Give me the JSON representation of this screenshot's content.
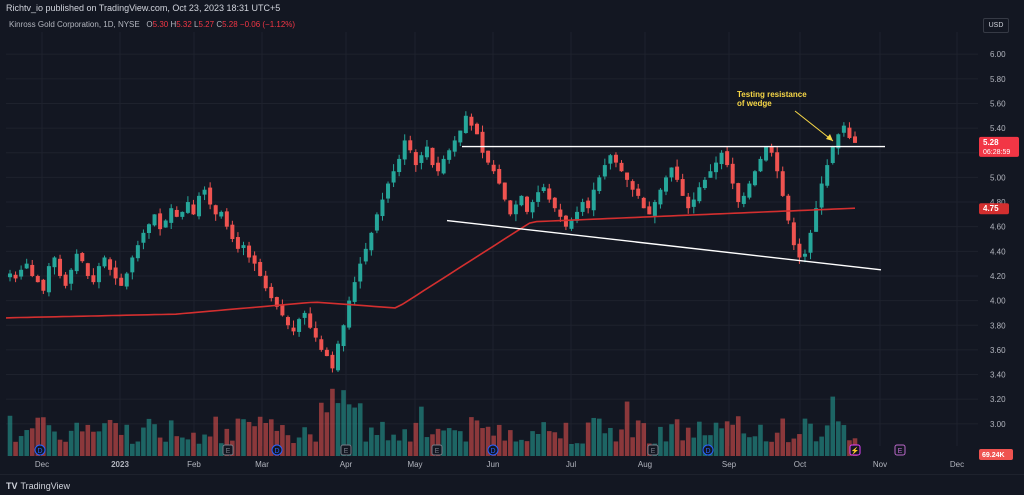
{
  "header": {
    "publisher_line": "Richtv_io published on TradingView.com, Oct 23, 2023 18:31 UTC+5"
  },
  "legend": {
    "symbol": "Kinross Gold Corporation, 1D, NYSE",
    "open_label": "O",
    "open": "5.30",
    "high_label": "H",
    "high": "5.32",
    "low_label": "L",
    "low": "5.27",
    "close_label": "C",
    "close": "5.28",
    "change": "−0.06 (−1.12%)"
  },
  "currency": "USD",
  "footer": {
    "brand": "TradingView"
  },
  "colors": {
    "up": "#26a69a",
    "down": "#ef5350",
    "ma": "#d32f2f",
    "bg": "#131722",
    "grid": "#1e222d"
  },
  "chart_data": {
    "type": "candlestick",
    "y_axis": {
      "ticks": [
        "6.00",
        "5.80",
        "5.60",
        "5.40",
        "5.20",
        "5.00",
        "4.80",
        "4.60",
        "4.40",
        "4.20",
        "4.00",
        "3.80",
        "3.60",
        "3.40",
        "3.20",
        "3.00"
      ],
      "ylim": [
        2.82,
        6.18
      ],
      "side": "right"
    },
    "x_axis": {
      "ticks": [
        "Dec",
        "2023",
        "Feb",
        "Mar",
        "Apr",
        "May",
        "Jun",
        "Jul",
        "Aug",
        "Sep",
        "Oct",
        "Nov",
        "Dec"
      ]
    },
    "price_label": {
      "value": "5.28",
      "countdown": "06:28:59"
    },
    "ma_label": {
      "value": "4.75"
    },
    "volume_label": {
      "value": "69.24K"
    },
    "series_closes": [
      4.22,
      4.18,
      4.25,
      4.3,
      4.2,
      4.15,
      4.08,
      4.28,
      4.35,
      4.2,
      4.12,
      4.25,
      4.38,
      4.32,
      4.2,
      4.15,
      4.28,
      4.35,
      4.25,
      4.18,
      4.12,
      4.22,
      4.35,
      4.45,
      4.55,
      4.62,
      4.7,
      4.58,
      4.65,
      4.75,
      4.68,
      4.72,
      4.8,
      4.7,
      4.85,
      4.9,
      4.78,
      4.7,
      4.72,
      4.6,
      4.5,
      4.42,
      4.45,
      4.35,
      4.3,
      4.2,
      4.1,
      4.02,
      3.95,
      3.88,
      3.8,
      3.75,
      3.85,
      3.9,
      3.78,
      3.7,
      3.6,
      3.55,
      3.45,
      3.65,
      3.8,
      4.0,
      4.15,
      4.3,
      4.42,
      4.55,
      4.7,
      4.82,
      4.95,
      5.05,
      5.15,
      5.3,
      5.22,
      5.1,
      5.18,
      5.25,
      5.1,
      5.05,
      5.15,
      5.22,
      5.3,
      5.38,
      5.5,
      5.42,
      5.35,
      5.2,
      5.12,
      5.05,
      4.95,
      4.82,
      4.7,
      4.78,
      4.85,
      4.72,
      4.8,
      4.88,
      4.92,
      4.82,
      4.75,
      4.68,
      4.6,
      4.65,
      4.72,
      4.8,
      4.75,
      4.9,
      5.0,
      5.1,
      5.18,
      5.12,
      5.05,
      4.98,
      4.9,
      4.85,
      4.75,
      4.7,
      4.8,
      4.9,
      5.0,
      5.08,
      4.98,
      4.85,
      4.75,
      4.82,
      4.92,
      4.98,
      5.05,
      5.12,
      5.2,
      5.1,
      4.95,
      4.8,
      4.85,
      4.95,
      5.05,
      5.15,
      5.25,
      5.2,
      5.05,
      4.85,
      4.65,
      4.45,
      4.35,
      4.38,
      4.55,
      4.75,
      4.95,
      5.1,
      5.25,
      5.35,
      5.42,
      5.32,
      5.28
    ],
    "ma200_start_end": [
      3.86,
      4.75
    ],
    "volume_ylim": [
      0,
      1
    ]
  },
  "annotations": {
    "note": "Testing resistance\nof wedge",
    "note_line1": "Testing resistance",
    "note_line2": "of wedge",
    "resistance_level": 5.25,
    "support_line": [
      [
        4.65,
        "2023-05-10"
      ],
      [
        4.25,
        "2023-10-31"
      ]
    ]
  },
  "events": {
    "dividend_marker": "D",
    "earnings_marker": "E",
    "split_marker": "⚡"
  }
}
